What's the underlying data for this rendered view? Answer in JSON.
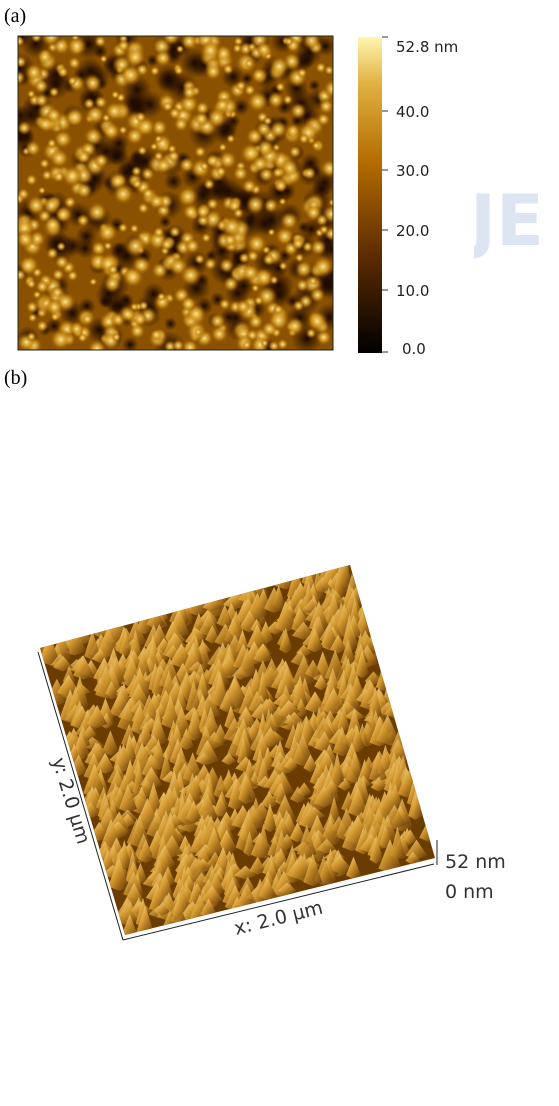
{
  "panel_a": {
    "label": "(a)",
    "colorbar": {
      "max_label": "52.8 nm",
      "tick_labels": [
        "40.0",
        "30.0",
        "20.0",
        "10.0",
        "0.0"
      ]
    },
    "watermark": "JE"
  },
  "panel_b": {
    "label": "(b)",
    "y_axis_label": "y: 2.0 µm",
    "x_axis_label": "x: 2.0 µm",
    "z_max_label": "52 nm",
    "z_min_label": "0 nm"
  }
}
